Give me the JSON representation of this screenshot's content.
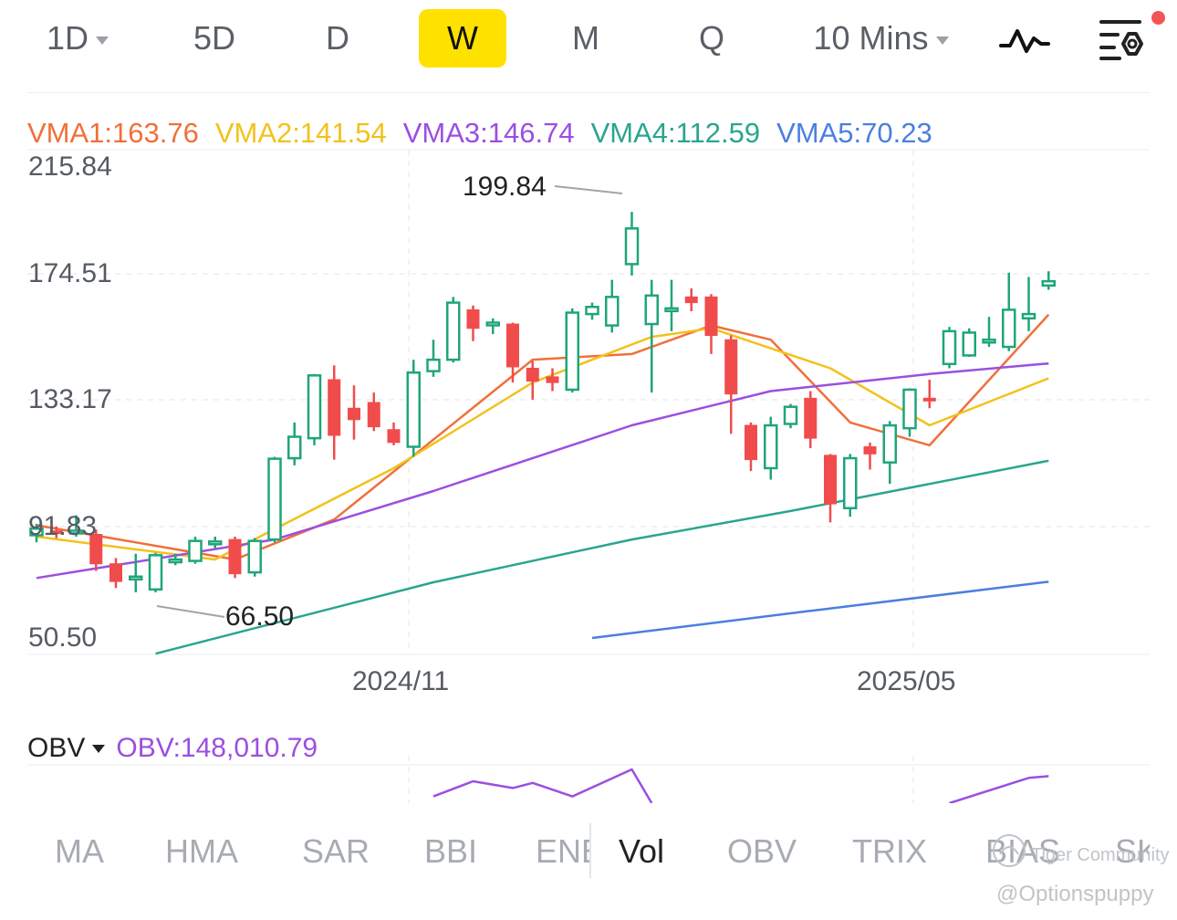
{
  "timeframes": [
    {
      "label": "1D",
      "dropdown": true
    },
    {
      "label": "5D",
      "dropdown": false
    },
    {
      "label": "D",
      "dropdown": false
    },
    {
      "label": "W",
      "dropdown": false,
      "active": true
    },
    {
      "label": "M",
      "dropdown": false
    },
    {
      "label": "Q",
      "dropdown": false
    },
    {
      "label": "10 Mins",
      "dropdown": true
    }
  ],
  "toolbar_icons": [
    "indicator-line-icon",
    "chart-settings-icon"
  ],
  "vma": [
    {
      "label": "VMA1:163.76",
      "color": "#f0703a"
    },
    {
      "label": "VMA2:141.54",
      "color": "#f2c21b"
    },
    {
      "label": "VMA3:146.74",
      "color": "#9b4fe0"
    },
    {
      "label": "VMA4:112.59",
      "color": "#2aa58f"
    },
    {
      "label": "VMA5:70.23",
      "color": "#4a7fe0"
    }
  ],
  "price_axis": [
    "215.84",
    "174.51",
    "133.17",
    "91.83",
    "50.50"
  ],
  "date_axis": [
    "2024/11",
    "2025/05"
  ],
  "annotations": {
    "high": "199.84",
    "low": "66.50"
  },
  "obv": {
    "name": "OBV",
    "value_label": "OBV:148,010.79",
    "color": "#9b4fe0"
  },
  "indicator_tabs": [
    "MA",
    "HMA",
    "SAR",
    "BBI",
    "ENE",
    "Vol",
    "OBV",
    "TRIX",
    "BIAS",
    "SK"
  ],
  "active_indicator": "Vol",
  "watermark": {
    "community": "Tiger Community",
    "user": "@Optionspuppy"
  },
  "colors": {
    "up": "#1fa57a",
    "down": "#f04c4c",
    "accent": "#ffe100"
  },
  "chart_data": {
    "type": "candlestick",
    "ylim": [
      50.5,
      215.84
    ],
    "candles": [
      [
        86.5,
        88.8,
        84.0,
        90.5
      ],
      [
        88.0,
        87.3,
        85.5,
        89.6
      ],
      [
        88.0,
        88.1,
        86.0,
        93.5
      ],
      [
        86.8,
        76.5,
        74.0,
        88.5
      ],
      [
        76.5,
        70.3,
        68.0,
        78.5
      ],
      [
        71.4,
        72.0,
        66.5,
        80.0
      ],
      [
        67.5,
        79.5,
        66.5,
        80.3
      ],
      [
        77.8,
        78.0,
        76.0,
        80.0
      ],
      [
        77.5,
        84.5,
        76.5,
        86.0
      ],
      [
        84.2,
        84.3,
        82.0,
        86.0
      ],
      [
        85.0,
        73.0,
        71.5,
        86.0
      ],
      [
        73.5,
        84.5,
        72.0,
        85.5
      ],
      [
        85.0,
        113.3,
        84.0,
        114.0
      ],
      [
        113.5,
        121.0,
        111.0,
        126.0
      ],
      [
        120.5,
        142.5,
        118.0,
        143.0
      ],
      [
        141.0,
        121.5,
        113.0,
        146.0
      ],
      [
        131.0,
        127.0,
        120.0,
        139.0
      ],
      [
        133.0,
        124.5,
        123.0,
        136.5
      ],
      [
        123.5,
        119.0,
        118.0,
        126.0
      ],
      [
        117.5,
        143.5,
        114.0,
        148.0
      ],
      [
        144.0,
        148.0,
        142.0,
        155.0
      ],
      [
        148.0,
        168.0,
        147.0,
        170.0
      ],
      [
        165.5,
        159.0,
        154.5,
        167.0
      ],
      [
        160.5,
        161.0,
        157.0,
        162.5
      ],
      [
        160.5,
        145.5,
        140.0,
        161.0
      ],
      [
        145.0,
        140.5,
        134.0,
        147.5
      ],
      [
        142.0,
        140.0,
        137.0,
        145.0
      ],
      [
        137.5,
        164.5,
        136.5,
        166.0
      ],
      [
        164.0,
        166.5,
        162.0,
        168.0
      ],
      [
        160.0,
        170.0,
        157.5,
        176.0
      ],
      [
        181.5,
        194.0,
        177.5,
        199.8
      ],
      [
        160.5,
        170.5,
        136.5,
        176.0
      ],
      [
        165.5,
        166.0,
        158.0,
        176.0
      ],
      [
        170.0,
        168.0,
        165.0,
        173.0
      ],
      [
        170.0,
        156.5,
        150.0,
        171.0
      ],
      [
        155.0,
        136.0,
        122.0,
        156.5
      ],
      [
        125.0,
        113.0,
        109.0,
        126.0
      ],
      [
        110.0,
        125.0,
        106.0,
        128.0
      ],
      [
        125.5,
        131.5,
        124.0,
        132.5
      ],
      [
        134.5,
        120.5,
        117.0,
        137.0
      ],
      [
        114.5,
        97.5,
        91.0,
        115.0
      ],
      [
        96.0,
        113.5,
        93.0,
        115.0
      ],
      [
        117.5,
        115.0,
        109.5,
        119.0
      ],
      [
        112.0,
        125.0,
        104.5,
        126.5
      ],
      [
        124.0,
        137.5,
        121.0,
        138.0
      ],
      [
        134.5,
        134.0,
        131.0,
        141.0
      ],
      [
        146.5,
        158.0,
        145.0,
        159.5
      ],
      [
        149.5,
        157.5,
        149.0,
        159.0
      ],
      [
        154.5,
        155.0,
        152.5,
        163.0
      ],
      [
        152.5,
        165.5,
        151.0,
        178.5
      ],
      [
        162.5,
        164.0,
        158.0,
        177.0
      ],
      [
        174.0,
        175.5,
        172.5,
        179.0
      ]
    ],
    "ma_lines": [
      {
        "name": "VMA1",
        "values": [
          [
            0,
            90.0
          ],
          [
            10,
            78.0
          ],
          [
            15,
            92.0
          ],
          [
            25,
            148.0
          ],
          [
            30,
            150.0
          ],
          [
            34,
            160.0
          ],
          [
            37,
            155.0
          ],
          [
            41,
            126.0
          ],
          [
            45,
            118.0
          ],
          [
            51,
            163.8
          ]
        ]
      },
      {
        "name": "VMA2",
        "values": [
          [
            0,
            86.0
          ],
          [
            9,
            78.0
          ],
          [
            18,
            110.0
          ],
          [
            25,
            140.0
          ],
          [
            31,
            156.0
          ],
          [
            34,
            159.0
          ],
          [
            40,
            145.0
          ],
          [
            45,
            125.0
          ],
          [
            51,
            141.5
          ]
        ]
      },
      {
        "name": "VMA3",
        "values": [
          [
            0,
            71.5
          ],
          [
            12,
            85.0
          ],
          [
            20,
            102.0
          ],
          [
            30,
            125.0
          ],
          [
            37,
            137.0
          ],
          [
            45,
            143.0
          ],
          [
            51,
            146.7
          ]
        ]
      },
      {
        "name": "VMA4",
        "values": [
          [
            6,
            45.0
          ],
          [
            20,
            70.0
          ],
          [
            30,
            85.0
          ],
          [
            38,
            95.0
          ],
          [
            51,
            112.6
          ]
        ]
      },
      {
        "name": "VMA5",
        "values": [
          [
            28,
            50.5
          ],
          [
            39,
            60.0
          ],
          [
            51,
            70.2
          ]
        ]
      }
    ],
    "obv_values": [
      [
        20,
        0.2
      ],
      [
        22,
        0.65
      ],
      [
        24,
        0.45
      ],
      [
        25,
        0.6
      ],
      [
        27,
        0.2
      ],
      [
        30,
        1.0
      ],
      [
        31,
        0.0
      ],
      [
        46,
        0.0
      ],
      [
        50,
        0.75
      ],
      [
        51,
        0.8
      ]
    ]
  }
}
